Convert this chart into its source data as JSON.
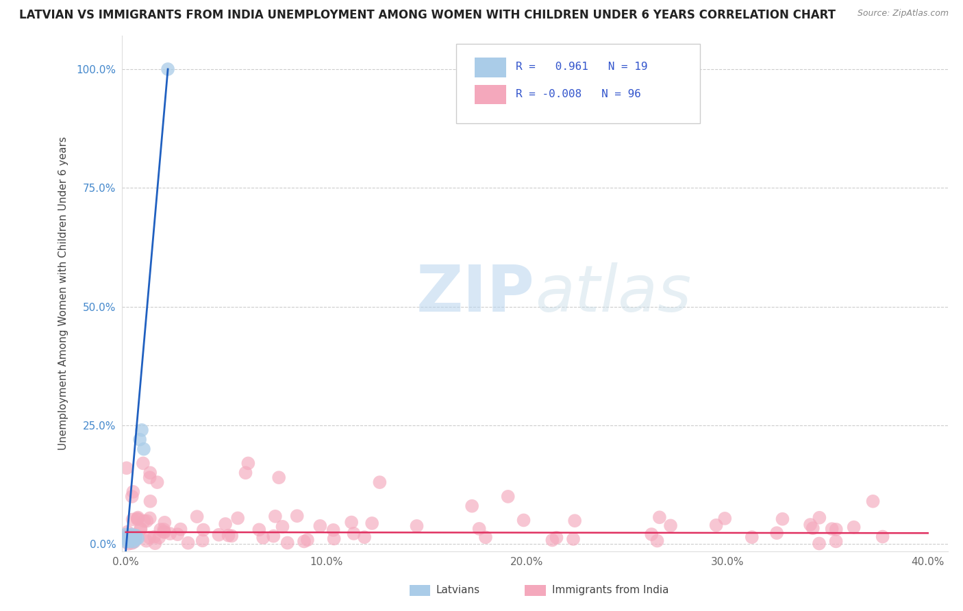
{
  "title": "LATVIAN VS IMMIGRANTS FROM INDIA UNEMPLOYMENT AMONG WOMEN WITH CHILDREN UNDER 6 YEARS CORRELATION CHART",
  "source": "Source: ZipAtlas.com",
  "ylabel": "Unemployment Among Women with Children Under 6 years",
  "xlim": [
    -0.002,
    0.41
  ],
  "ylim": [
    -0.015,
    1.07
  ],
  "xlabel_vals": [
    0.0,
    0.1,
    0.2,
    0.3,
    0.4
  ],
  "xlabel_labels": [
    "0.0%",
    "10.0%",
    "20.0%",
    "30.0%",
    "40.0%"
  ],
  "ylabel_vals": [
    0.0,
    0.25,
    0.5,
    0.75,
    1.0
  ],
  "ylabel_labels": [
    "0.0%",
    "25.0%",
    "50.0%",
    "75.0%",
    "100.0%"
  ],
  "latvian_R": 0.961,
  "latvian_N": 19,
  "india_R": -0.008,
  "india_N": 96,
  "latvian_color": "#aacce8",
  "india_color": "#f4a8bc",
  "latvian_line_color": "#2060c0",
  "india_line_color": "#e03060",
  "watermark_zip": "ZIP",
  "watermark_atlas": "atlas",
  "background_color": "#ffffff",
  "grid_color": "#cccccc",
  "title_color": "#222222",
  "ylabel_color": "#444444",
  "tick_color_y": "#4488cc",
  "tick_color_x": "#666666",
  "source_color": "#888888",
  "legend_text_color": "#3355cc",
  "latvian_line_x0": 0.0,
  "latvian_line_y0": -0.015,
  "latvian_line_x1": 0.021,
  "latvian_line_y1": 1.0,
  "india_line_x0": 0.0,
  "india_line_y0": 0.025,
  "india_line_x1": 0.4,
  "india_line_y1": 0.023
}
